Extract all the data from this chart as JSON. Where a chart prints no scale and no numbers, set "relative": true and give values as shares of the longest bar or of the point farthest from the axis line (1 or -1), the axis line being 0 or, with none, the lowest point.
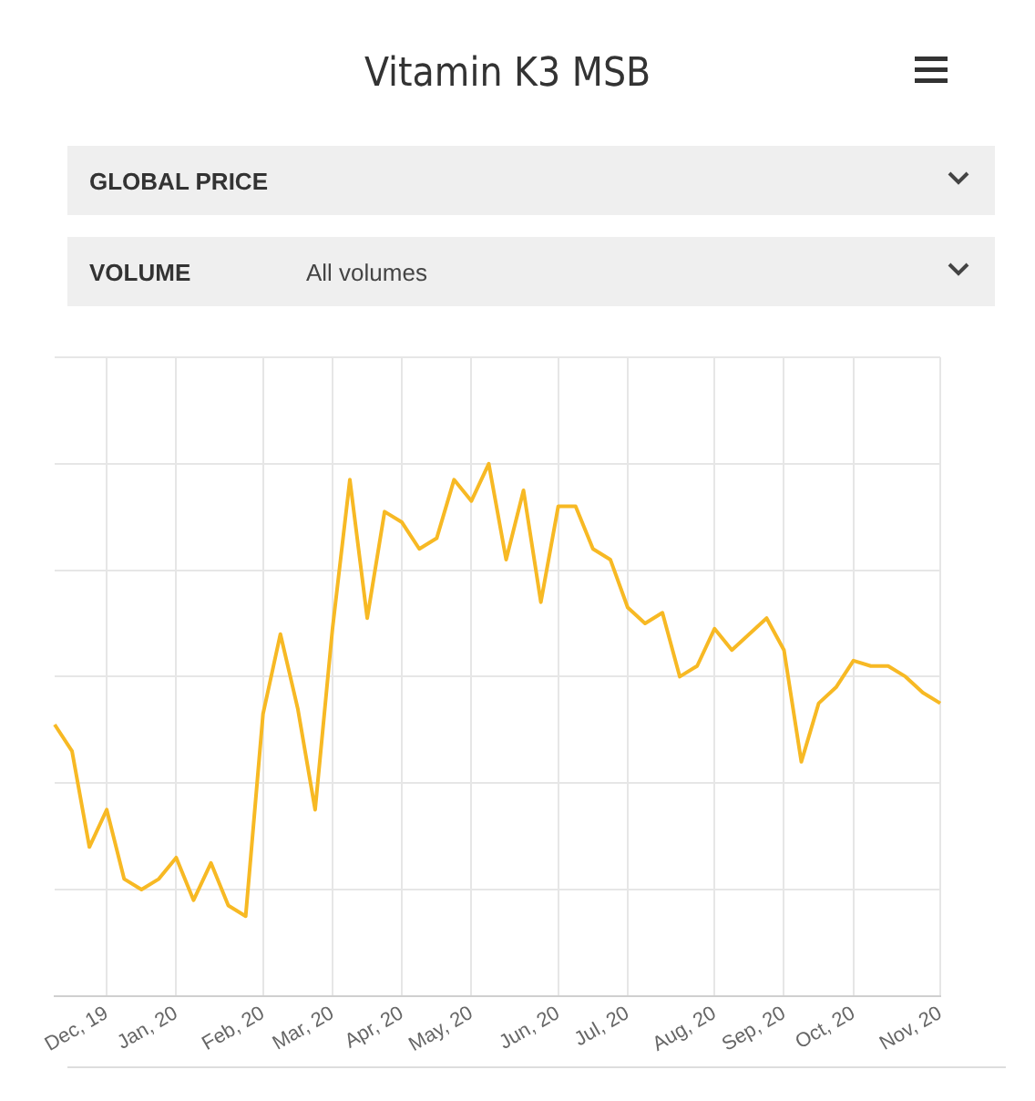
{
  "chart_data": {
    "type": "line",
    "title": "Vitamin K3 MSB",
    "annotations": [
      "GLOBAL PRICE",
      "VOLUME",
      "All volumes"
    ],
    "categories": [
      null,
      null,
      null,
      "Dec, 19",
      null,
      null,
      null,
      "Jan, 20",
      null,
      null,
      null,
      null,
      "Feb, 20",
      null,
      null,
      null,
      "Mar, 20",
      null,
      null,
      null,
      "Apr, 20",
      null,
      null,
      null,
      "May, 20",
      null,
      null,
      null,
      null,
      "Jun, 20",
      null,
      null,
      null,
      "Jul, 20",
      null,
      null,
      null,
      null,
      "Aug, 20",
      null,
      null,
      null,
      "Sep, 20",
      null,
      null,
      null,
      "Oct, 20",
      null,
      null,
      null,
      null,
      "Nov, 20"
    ],
    "series": [
      {
        "color": "#f7b924",
        "values": [
          0.51,
          0.46,
          0.28,
          0.35,
          0.22,
          0.2,
          0.22,
          0.26,
          0.18,
          0.25,
          0.17,
          0.15,
          0.53,
          0.68,
          0.54,
          0.35,
          0.69,
          0.97,
          0.71,
          0.91,
          0.89,
          0.84,
          0.86,
          0.97,
          0.93,
          1,
          0.82,
          0.95,
          0.74,
          0.92,
          0.92,
          0.84,
          0.82,
          0.73,
          0.7,
          0.72,
          0.6,
          0.62,
          0.69,
          0.65,
          0.68,
          0.71,
          0.65,
          0.44,
          0.55,
          0.58,
          0.63,
          0.62,
          0.62,
          0.6,
          0.57,
          0.55
        ]
      }
    ],
    "relative": true,
    "grid": true,
    "legend": false,
    "marker": "none",
    "line_style": "solid"
  }
}
